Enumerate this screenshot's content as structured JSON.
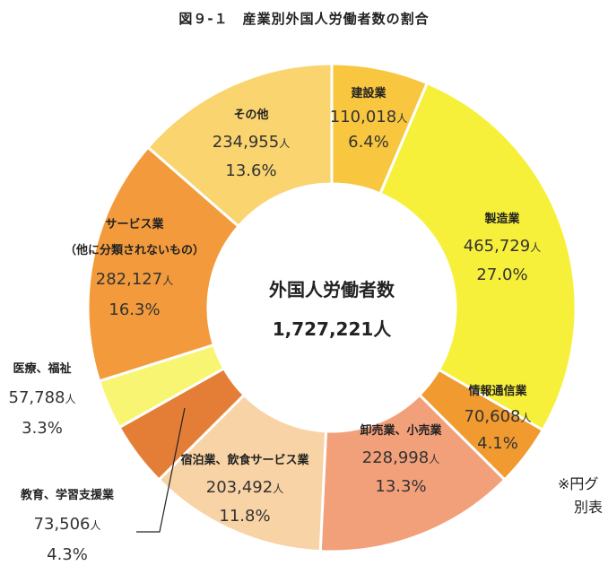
{
  "chart_data": {
    "type": "pie",
    "title": "図９-１　産業別外国人労働者数の割合",
    "center_label": "外国人労働者数",
    "center_value": "1,727,221人",
    "slices": [
      {
        "name": "建設業",
        "count": "110,018",
        "unit": "人",
        "percent_label": "6.4%",
        "value": 6.4,
        "color": "#F8C63F"
      },
      {
        "name": "製造業",
        "count": "465,729",
        "unit": "人",
        "percent_label": "27.0%",
        "value": 27.0,
        "color": "#F7F03A"
      },
      {
        "name": "情報通信業",
        "count": "70,608",
        "unit": "人",
        "percent_label": "4.1%",
        "value": 4.1,
        "color": "#F19A2F"
      },
      {
        "name": "卸売業、小売業",
        "count": "228,998",
        "unit": "人",
        "percent_label": "13.3%",
        "value": 13.3,
        "color": "#F2A07A"
      },
      {
        "name": "宿泊業、飲食サービス業",
        "count": "203,492",
        "unit": "人",
        "percent_label": "11.8%",
        "value": 11.8,
        "color": "#F8D3A5"
      },
      {
        "name": "教育、学習支援業",
        "count": "73,506",
        "unit": "人",
        "percent_label": "4.3%",
        "value": 4.3,
        "color": "#E47E36"
      },
      {
        "name": "医療、福祉",
        "count": "57,788",
        "unit": "人",
        "percent_label": "3.3%",
        "value": 3.3,
        "color": "#F8F572"
      },
      {
        "name": "サービス業",
        "subname": "（他に分類されないもの）",
        "count": "282,127",
        "unit": "人",
        "percent_label": "16.3%",
        "value": 16.3,
        "color": "#F39B3C"
      },
      {
        "name": "その他",
        "count": "234,955",
        "unit": "人",
        "percent_label": "13.6%",
        "value": 13.6,
        "color": "#F9D46F"
      }
    ]
  },
  "note": {
    "line1": "※円グ",
    "line2": "別表"
  }
}
